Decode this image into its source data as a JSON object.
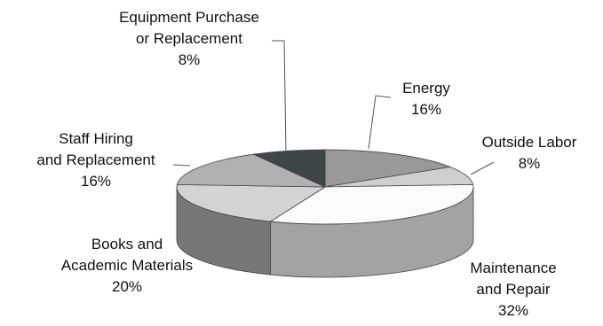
{
  "chart_data": {
    "type": "pie",
    "style": "3d-exploded-none",
    "start_category": "Energy",
    "direction": "clockwise",
    "slices": [
      {
        "label_lines": [
          "Energy"
        ],
        "pct_text": "16%",
        "value": 16,
        "color": "#999999",
        "side": "#6d6d6d"
      },
      {
        "label_lines": [
          "Outside Labor"
        ],
        "pct_text": "8%",
        "value": 8,
        "color": "#cfcfcf",
        "side": "#9a9a9a"
      },
      {
        "label_lines": [
          "Maintenance",
          "and Repair"
        ],
        "pct_text": "32%",
        "value": 32,
        "color": "#fbfbfb",
        "side": "#a3a3a3"
      },
      {
        "label_lines": [
          "Books and",
          "Academic Materials"
        ],
        "pct_text": "20%",
        "value": 20,
        "color": "#d4d4d4",
        "side": "#777777"
      },
      {
        "label_lines": [
          "Staff Hiring",
          "and Replacement"
        ],
        "pct_text": "16%",
        "value": 16,
        "color": "#b1b1b1",
        "side": "#808080"
      },
      {
        "label_lines": [
          "Equipment Purchase",
          "or Replacement"
        ],
        "pct_text": "8%",
        "value": 8,
        "color": "#3d4546",
        "side": "#2a3031"
      }
    ]
  }
}
